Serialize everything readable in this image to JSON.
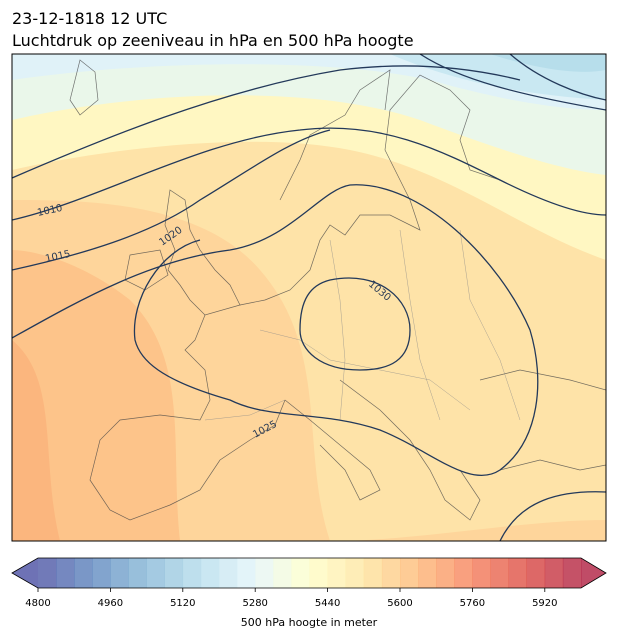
{
  "header": {
    "date": "23-12-1818 12 UTC",
    "title": "Luchtdruk op zeeniveau in hPa en 500 hPa hoogte"
  },
  "isobars": [
    {
      "label": "1010"
    },
    {
      "label": "1015"
    },
    {
      "label": "1020"
    },
    {
      "label": "1025"
    },
    {
      "label": "1030"
    }
  ],
  "colorbar": {
    "label": "500 hPa hoogte in meter",
    "range": [
      4800,
      6000
    ],
    "step": 40,
    "ticks": [
      4800,
      4960,
      5120,
      5280,
      5440,
      5600,
      5760,
      5920
    ]
  }
}
